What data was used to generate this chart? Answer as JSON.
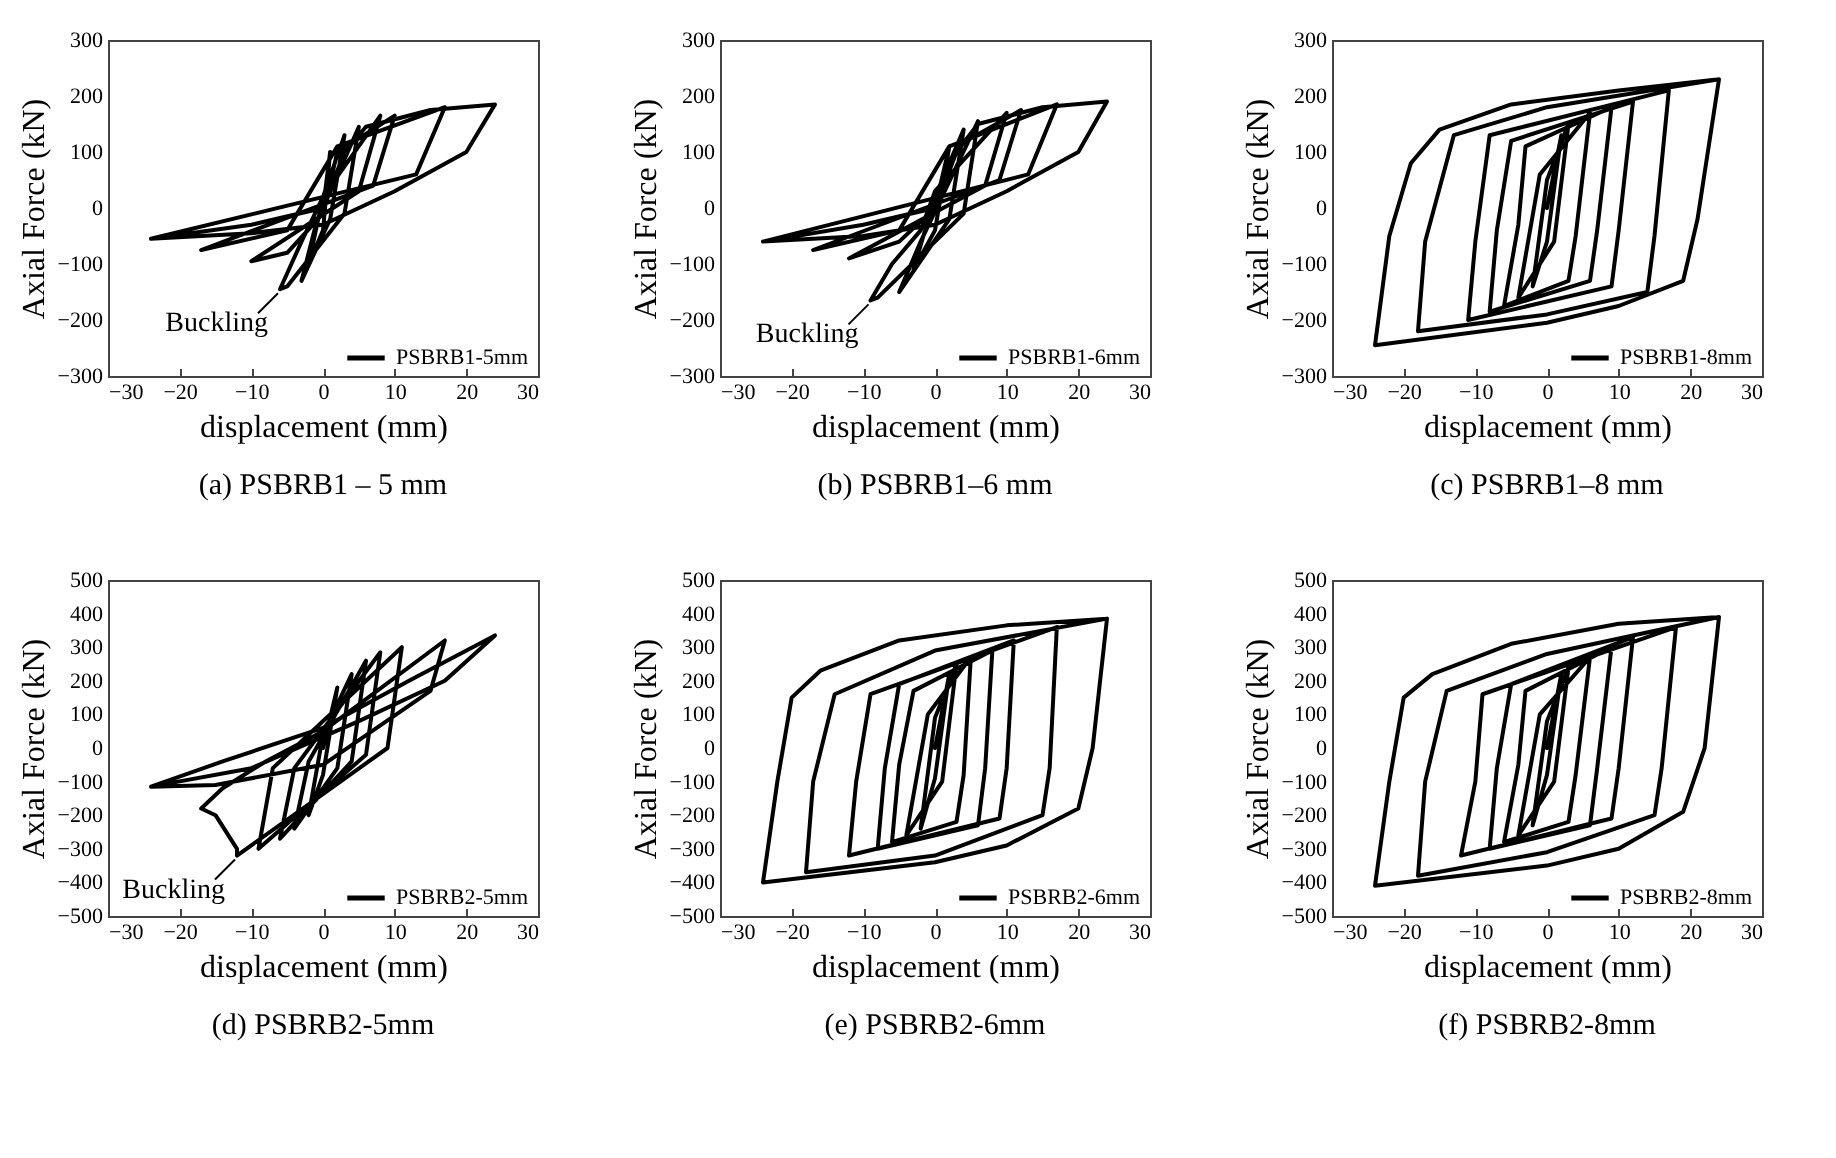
{
  "chart_data": [
    {
      "type": "line",
      "title": "(a) PSBRB1 – 5 mm",
      "xlabel": "displacement (mm)",
      "ylabel": "Axial Force (kN)",
      "xlim": [
        -30,
        30
      ],
      "xticks": [
        -30,
        -20,
        -10,
        0,
        10,
        20,
        30
      ],
      "ylim": [
        -300,
        300
      ],
      "yticks": [
        -300,
        -200,
        -100,
        0,
        100,
        200,
        300
      ],
      "legend": "bottom right",
      "annotations": [
        {
          "text": "Buckling",
          "x": -6,
          "y": -145
        }
      ],
      "series": [
        {
          "name": "PSBRB1-5mm",
          "color": "#000000",
          "x": [
            0,
            1,
            0,
            -2,
            0,
            3,
            1,
            -3,
            -1,
            5,
            3,
            -5,
            -6,
            -3,
            0,
            8,
            5,
            -10,
            -5,
            0,
            2,
            10,
            7,
            -17,
            -5,
            2,
            17,
            13,
            -24,
            -10,
            0,
            3,
            6,
            15,
            24,
            20,
            10,
            0,
            -10,
            -24
          ],
          "values": [
            0,
            100,
            -40,
            -100,
            20,
            130,
            -20,
            -130,
            -30,
            145,
            -10,
            -140,
            -145,
            -60,
            20,
            165,
            30,
            -95,
            -80,
            -10,
            100,
            165,
            40,
            -75,
            -40,
            110,
            180,
            60,
            -55,
            -30,
            0,
            100,
            145,
            175,
            185,
            100,
            30,
            -30,
            -45,
            -55
          ]
        }
      ]
    },
    {
      "type": "line",
      "title": "(b) PSBRB1–6 mm",
      "xlabel": "displacement (mm)",
      "ylabel": "Axial Force (kN)",
      "xlim": [
        -30,
        30
      ],
      "xticks": [
        -30,
        -20,
        -10,
        0,
        10,
        20,
        30
      ],
      "ylim": [
        -300,
        300
      ],
      "yticks": [
        -300,
        -200,
        -100,
        0,
        100,
        200,
        300
      ],
      "legend": "bottom right",
      "annotations": [
        {
          "text": "Buckling",
          "x": -9,
          "y": -165
        }
      ],
      "series": [
        {
          "name": "PSBRB1-6mm",
          "color": "#000000",
          "x": [
            0,
            2,
            0,
            -3,
            0,
            4,
            2,
            -5,
            -2,
            6,
            4,
            -8,
            -9,
            -6,
            -2,
            0,
            10,
            7,
            -12,
            -5,
            0,
            3,
            12,
            9,
            -17,
            -5,
            2,
            17,
            13,
            -24,
            -10,
            0,
            3,
            6,
            15,
            24,
            20,
            10,
            0,
            -10,
            -24
          ],
          "values": [
            0,
            110,
            -40,
            -110,
            20,
            140,
            -20,
            -150,
            -60,
            155,
            -10,
            -160,
            -165,
            -100,
            -40,
            30,
            170,
            40,
            -90,
            -60,
            0,
            110,
            175,
            50,
            -75,
            -40,
            110,
            185,
            60,
            -60,
            -30,
            0,
            100,
            150,
            180,
            190,
            100,
            30,
            -30,
            -50,
            -60
          ]
        }
      ]
    },
    {
      "type": "line",
      "title": "(c) PSBRB1–8 mm",
      "xlabel": "displacement (mm)",
      "ylabel": "Axial Force (kN)",
      "xlim": [
        -30,
        30
      ],
      "xticks": [
        -30,
        -20,
        -10,
        0,
        10,
        20,
        30
      ],
      "ylim": [
        -300,
        300
      ],
      "yticks": [
        -300,
        -200,
        -100,
        0,
        100,
        200,
        300
      ],
      "legend": "bottom right",
      "series": [
        {
          "name": "PSBRB1-8mm",
          "color": "#000000",
          "x": [
            0,
            2,
            0,
            -2,
            0,
            3,
            1,
            -4,
            -1,
            6,
            4,
            3,
            -6,
            -4,
            -3,
            9,
            7,
            6,
            -8,
            -7,
            -5,
            12,
            10,
            9,
            -11,
            -10,
            -8,
            17,
            15,
            14,
            0,
            -18,
            -17,
            -13,
            0,
            24,
            21,
            19,
            10,
            0,
            -24,
            -22,
            -19,
            -15,
            -5,
            10,
            24
          ],
          "values": [
            0,
            130,
            -60,
            -140,
            50,
            150,
            -60,
            -160,
            60,
            170,
            -50,
            -130,
            -175,
            -30,
            110,
            180,
            -40,
            -130,
            -185,
            -40,
            120,
            190,
            -40,
            -140,
            -200,
            -60,
            130,
            210,
            -50,
            -150,
            -190,
            -220,
            -60,
            130,
            180,
            230,
            -20,
            -130,
            -175,
            -205,
            -245,
            -50,
            80,
            140,
            185,
            210,
            230
          ]
        }
      ]
    },
    {
      "type": "line",
      "title": "(d) PSBRB2-5mm",
      "xlabel": "displacement (mm)",
      "ylabel": "Axial Force (kN)",
      "xlim": [
        -30,
        30
      ],
      "xticks": [
        -30,
        -20,
        -10,
        0,
        10,
        20,
        30
      ],
      "ylim": [
        -500,
        500
      ],
      "yticks": [
        -500,
        -400,
        -300,
        -200,
        -100,
        0,
        100,
        200,
        300,
        400,
        500
      ],
      "legend": "bottom right",
      "annotations": [
        {
          "text": "Buckling",
          "x": -12,
          "y": -320
        }
      ],
      "series": [
        {
          "name": "PSBRB2-5mm",
          "color": "#000000",
          "x": [
            0,
            2,
            0,
            -2,
            0,
            4,
            2,
            -4,
            -2,
            6,
            4,
            -6,
            -4,
            8,
            6,
            -9,
            -7,
            11,
            9,
            -12,
            -12,
            -15,
            -17,
            -14,
            -8,
            0,
            17,
            15,
            0,
            -15,
            -24,
            -14,
            0,
            12,
            24,
            17,
            5,
            -10,
            -24
          ],
          "values": [
            0,
            180,
            -80,
            -200,
            40,
            220,
            -60,
            -240,
            -40,
            260,
            -40,
            -270,
            -60,
            285,
            -20,
            -300,
            -60,
            300,
            0,
            -320,
            -300,
            -200,
            -180,
            -120,
            -40,
            50,
            320,
            170,
            -50,
            -110,
            -115,
            -40,
            60,
            200,
            335,
            200,
            80,
            -60,
            -115
          ]
        }
      ]
    },
    {
      "type": "line",
      "title": "(e) PSBRB2-6mm",
      "xlabel": "displacement (mm)",
      "ylabel": "Axial Force (kN)",
      "xlim": [
        -30,
        30
      ],
      "xticks": [
        -30,
        -20,
        -10,
        0,
        10,
        20,
        30
      ],
      "ylim": [
        -500,
        500
      ],
      "yticks": [
        -500,
        -400,
        -300,
        -200,
        -100,
        0,
        100,
        200,
        300,
        400,
        500
      ],
      "legend": "bottom right",
      "series": [
        {
          "name": "PSBRB2-6mm",
          "color": "#000000",
          "x": [
            0,
            2,
            0,
            -2,
            0,
            3,
            1,
            -4,
            -1,
            5,
            4,
            3,
            -6,
            -5,
            -3,
            8,
            7,
            6,
            -8,
            -7,
            -5,
            11,
            10,
            9,
            -12,
            -11,
            -9,
            17,
            16,
            15,
            0,
            -18,
            -17,
            -14,
            0,
            24,
            22,
            20,
            10,
            0,
            -24,
            -22,
            -20,
            -16,
            -5,
            10,
            24
          ],
          "values": [
            0,
            220,
            -90,
            -240,
            90,
            250,
            -100,
            -260,
            100,
            270,
            -80,
            -220,
            -280,
            -50,
            170,
            290,
            -60,
            -230,
            -300,
            -60,
            190,
            320,
            -60,
            -210,
            -320,
            -100,
            160,
            360,
            -60,
            -200,
            -320,
            -370,
            -100,
            160,
            290,
            385,
            0,
            -180,
            -290,
            -340,
            -400,
            -100,
            150,
            230,
            320,
            365,
            385
          ]
        }
      ]
    },
    {
      "type": "line",
      "title": "(f) PSBRB2-8mm",
      "xlabel": "displacement (mm)",
      "ylabel": "Axial Force (kN)",
      "xlim": [
        -30,
        30
      ],
      "xticks": [
        -30,
        -20,
        -10,
        0,
        10,
        20,
        30
      ],
      "ylim": [
        -500,
        500
      ],
      "yticks": [
        -500,
        -400,
        -300,
        -200,
        -100,
        0,
        100,
        200,
        300,
        400,
        500
      ],
      "legend": "bottom right",
      "series": [
        {
          "name": "PSBRB2-8mm",
          "color": "#000000",
          "x": [
            0,
            2,
            0,
            -2,
            0,
            3,
            1,
            -4,
            -1,
            6,
            4,
            3,
            -6,
            -4,
            -3,
            9,
            7,
            6,
            -8,
            -7,
            -5,
            12,
            10,
            9,
            -12,
            -10,
            -9,
            18,
            16,
            15,
            0,
            -18,
            -17,
            -14,
            0,
            24,
            22,
            19,
            10,
            0,
            -24,
            -22,
            -20,
            -16,
            -5,
            10,
            24
          ],
          "values": [
            0,
            220,
            -80,
            -230,
            80,
            240,
            -100,
            -260,
            100,
            270,
            -80,
            -220,
            -280,
            -50,
            170,
            300,
            -60,
            -230,
            -300,
            -60,
            190,
            330,
            -60,
            -210,
            -320,
            -100,
            160,
            360,
            -60,
            -200,
            -310,
            -380,
            -100,
            170,
            280,
            390,
            0,
            -190,
            -300,
            -350,
            -410,
            -100,
            150,
            220,
            310,
            370,
            390
          ]
        }
      ]
    }
  ]
}
